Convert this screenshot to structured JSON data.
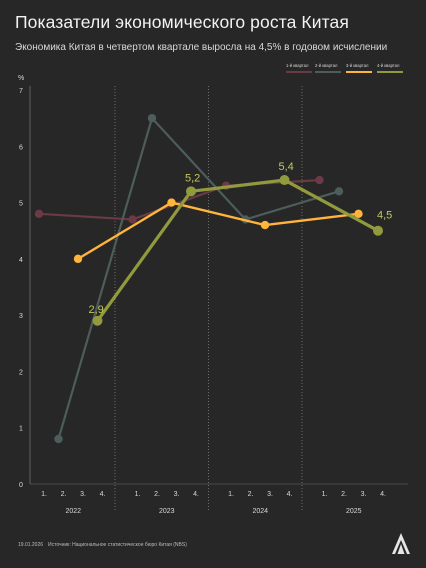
{
  "title": "Показатели экономического роста Китая",
  "subtitle": "Экономика Китая в четвертом квартале выросла на 4,5% в годовом исчислении",
  "footer": {
    "date": "19.01.2026",
    "source": "Источник: Национальное статистическое бюро Китая (NBS)"
  },
  "logo": {
    "icon": "aa-news-agency-logo",
    "text": "AA"
  },
  "colors": {
    "background": "#272727",
    "axis_text": "#d9d9d9",
    "q1": "#6b3a45",
    "q2": "#4c5d5b",
    "q3": "#ffb43c",
    "q4": "#929a3e",
    "q4_label": "#c2c85c"
  },
  "chart_data": {
    "type": "line",
    "ylabel": "%",
    "ylim": [
      0,
      7
    ],
    "yticks": [
      "0",
      "1",
      "2",
      "3",
      "4",
      "5",
      "6",
      "7"
    ],
    "x_years": [
      "2022",
      "2023",
      "2024",
      "2025"
    ],
    "x_quarter_ticks": [
      "1.",
      "2.",
      "3.",
      "4."
    ],
    "legend_position": "top-right",
    "grid": "dotted vertical year separators",
    "series": [
      {
        "name": "1-й квартал",
        "color_key": "q1",
        "values": [
          4.8,
          4.7,
          5.3,
          5.4
        ]
      },
      {
        "name": "2-й квартал",
        "color_key": "q2",
        "values": [
          0.8,
          6.5,
          4.7,
          5.2
        ]
      },
      {
        "name": "3-й квартал",
        "color_key": "q3",
        "values": [
          4.0,
          5.0,
          4.6,
          4.8
        ]
      },
      {
        "name": "4-й квартал",
        "color_key": "q4",
        "values": [
          2.9,
          5.2,
          5.4,
          4.5
        ]
      }
    ],
    "data_labels": [
      {
        "series": 3,
        "index": 0,
        "text": "2,9"
      },
      {
        "series": 3,
        "index": 1,
        "text": "5,2"
      },
      {
        "series": 3,
        "index": 2,
        "text": "5,4"
      },
      {
        "series": 3,
        "index": 3,
        "text": "4,5"
      }
    ]
  }
}
